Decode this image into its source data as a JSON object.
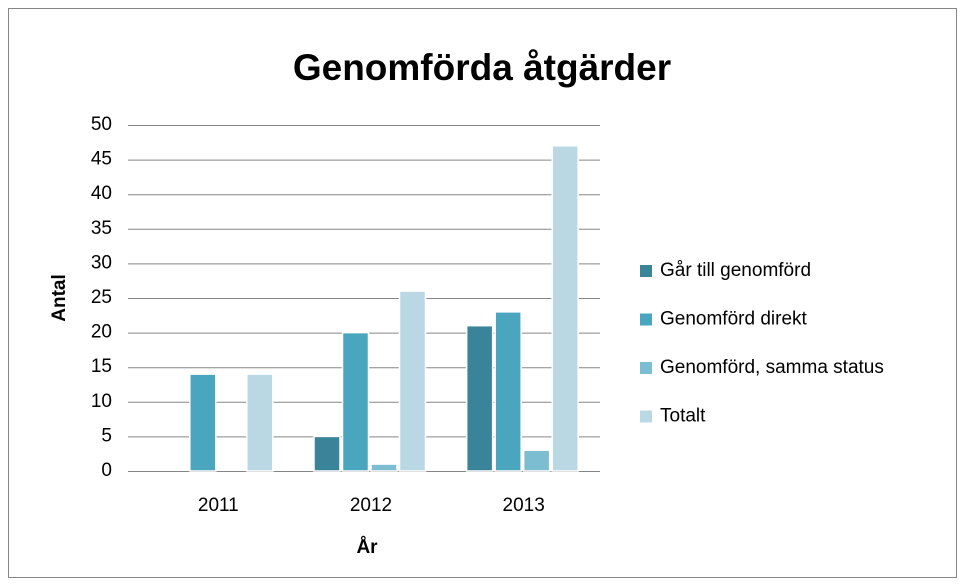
{
  "chart_data": {
    "type": "bar",
    "title": "Genomförda åtgärder",
    "x_label": "År",
    "y_label": "Antal",
    "categories": [
      "2011",
      "2012",
      "2013"
    ],
    "series": [
      {
        "name": "Går till genomförd",
        "color": "#3a8499",
        "values": [
          0,
          5,
          21
        ]
      },
      {
        "name": "Genomförd direkt",
        "color": "#4aa6bf",
        "values": [
          14,
          20,
          23
        ]
      },
      {
        "name": "Genomförd, samma status",
        "color": "#7dbdd2",
        "values": [
          0,
          1,
          3
        ]
      },
      {
        "name": "Totalt",
        "color": "#b9d8e4",
        "values": [
          14,
          26,
          47
        ]
      }
    ],
    "ylim": [
      0,
      50
    ],
    "yticks": [
      0,
      5,
      10,
      15,
      20,
      25,
      30,
      35,
      40,
      45,
      50
    ],
    "grid": true,
    "legend": "right"
  }
}
